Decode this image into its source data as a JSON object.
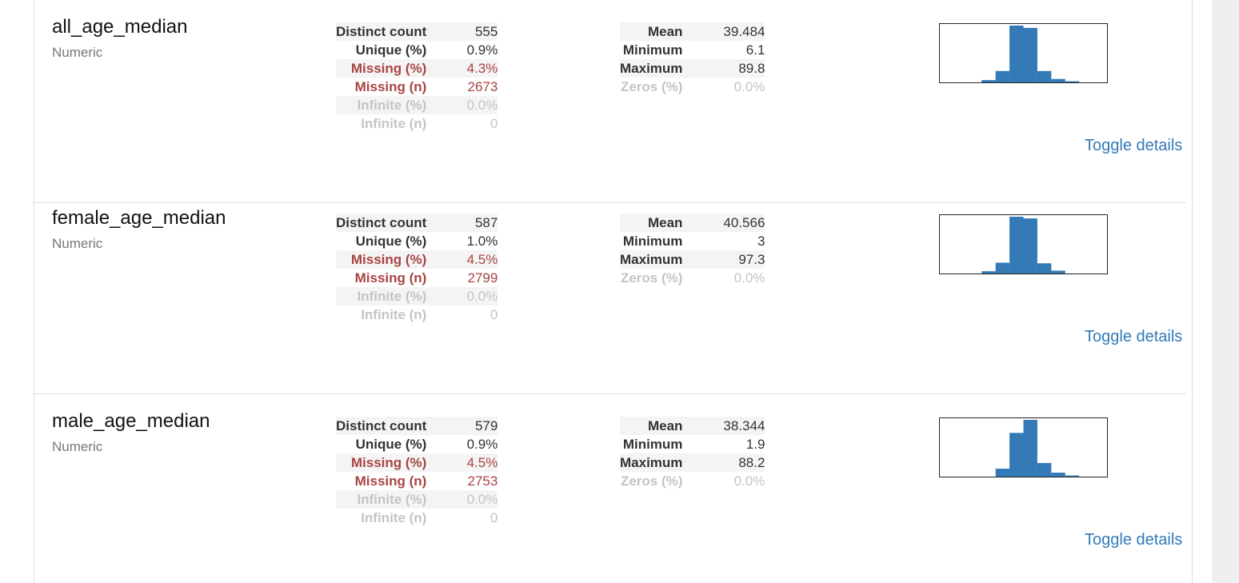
{
  "colors": {
    "accent": "#337ab7",
    "alert": "#a94442",
    "muted": "#c4c4c4",
    "bar": "#337ab7"
  },
  "variables": [
    {
      "name": "all_age_median",
      "type": "Numeric",
      "left_stats": [
        {
          "label": "Distinct count",
          "value": "555"
        },
        {
          "label": "Unique (%)",
          "value": "0.9%"
        },
        {
          "label": "Missing (%)",
          "value": "4.3%"
        },
        {
          "label": "Missing (n)",
          "value": "2673"
        },
        {
          "label": "Infinite (%)",
          "value": "0.0%"
        },
        {
          "label": "Infinite (n)",
          "value": "0"
        }
      ],
      "right_stats": [
        {
          "label": "Mean",
          "value": "39.484"
        },
        {
          "label": "Minimum",
          "value": "6.1"
        },
        {
          "label": "Maximum",
          "value": "89.8"
        },
        {
          "label": "Zeros (%)",
          "value": "0.0%"
        }
      ],
      "histogram_bins": [
        0,
        0,
        0,
        0.04,
        0.2,
        1.0,
        0.96,
        0.2,
        0.06,
        0.02,
        0,
        0
      ],
      "toggle_label": "Toggle details"
    },
    {
      "name": "female_age_median",
      "type": "Numeric",
      "left_stats": [
        {
          "label": "Distinct count",
          "value": "587"
        },
        {
          "label": "Unique (%)",
          "value": "1.0%"
        },
        {
          "label": "Missing (%)",
          "value": "4.5%"
        },
        {
          "label": "Missing (n)",
          "value": "2799"
        },
        {
          "label": "Infinite (%)",
          "value": "0.0%"
        },
        {
          "label": "Infinite (n)",
          "value": "0"
        }
      ],
      "right_stats": [
        {
          "label": "Mean",
          "value": "40.566"
        },
        {
          "label": "Minimum",
          "value": "3"
        },
        {
          "label": "Maximum",
          "value": "97.3"
        },
        {
          "label": "Zeros (%)",
          "value": "0.0%"
        }
      ],
      "histogram_bins": [
        0,
        0,
        0,
        0.04,
        0.19,
        1.0,
        0.97,
        0.18,
        0.05,
        0,
        0,
        0
      ],
      "toggle_label": "Toggle details"
    },
    {
      "name": "male_age_median",
      "type": "Numeric",
      "left_stats": [
        {
          "label": "Distinct count",
          "value": "579"
        },
        {
          "label": "Unique (%)",
          "value": "0.9%"
        },
        {
          "label": "Missing (%)",
          "value": "4.5%"
        },
        {
          "label": "Missing (n)",
          "value": "2753"
        },
        {
          "label": "Infinite (%)",
          "value": "0.0%"
        },
        {
          "label": "Infinite (n)",
          "value": "0"
        }
      ],
      "right_stats": [
        {
          "label": "Mean",
          "value": "38.344"
        },
        {
          "label": "Minimum",
          "value": "1.9"
        },
        {
          "label": "Maximum",
          "value": "88.2"
        },
        {
          "label": "Zeros (%)",
          "value": "0.0%"
        }
      ],
      "histogram_bins": [
        0,
        0,
        0,
        0,
        0.14,
        0.77,
        1.0,
        0.24,
        0.07,
        0.02,
        0,
        0
      ],
      "toggle_label": "Toggle details"
    }
  ]
}
